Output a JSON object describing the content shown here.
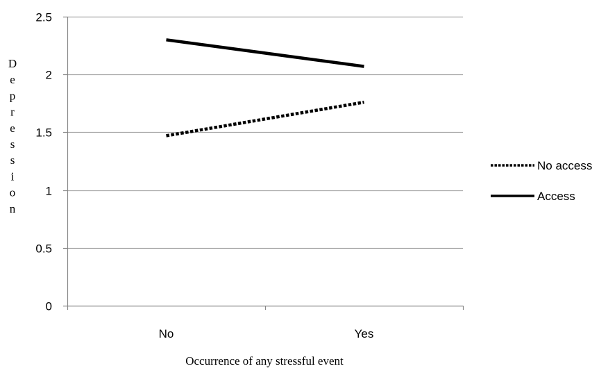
{
  "chart_data": {
    "type": "line",
    "categories": [
      "No",
      "Yes"
    ],
    "series": [
      {
        "name": "No access",
        "values": [
          1.47,
          1.76
        ],
        "style": "dotted",
        "color": "#000000"
      },
      {
        "name": "Access",
        "values": [
          2.3,
          2.07
        ],
        "style": "solid",
        "color": "#000000"
      }
    ],
    "xlabel": "Occurrence of any stressful event",
    "ylabel": "Depression",
    "ylim": [
      0,
      2.5
    ],
    "yticks": [
      0,
      0.5,
      1,
      1.5,
      2,
      2.5
    ],
    "ytick_labels": [
      "0",
      "0.5",
      "1",
      "1.5",
      "2",
      "2.5"
    ],
    "grid": "horizontal",
    "legend_position": "right",
    "gridline_color": "#a6a6a6",
    "axis_color": "#878787"
  }
}
